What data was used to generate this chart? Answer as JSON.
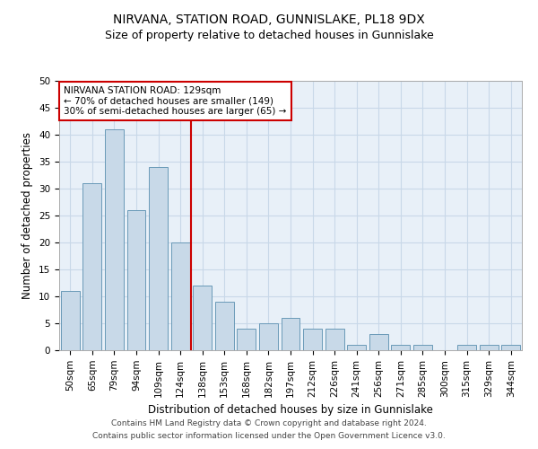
{
  "title": "NIRVANA, STATION ROAD, GUNNISLAKE, PL18 9DX",
  "subtitle": "Size of property relative to detached houses in Gunnislake",
  "xlabel": "Distribution of detached houses by size in Gunnislake",
  "ylabel": "Number of detached properties",
  "categories": [
    "50sqm",
    "65sqm",
    "79sqm",
    "94sqm",
    "109sqm",
    "124sqm",
    "138sqm",
    "153sqm",
    "168sqm",
    "182sqm",
    "197sqm",
    "212sqm",
    "226sqm",
    "241sqm",
    "256sqm",
    "271sqm",
    "285sqm",
    "300sqm",
    "315sqm",
    "329sqm",
    "344sqm"
  ],
  "values": [
    11,
    31,
    41,
    26,
    34,
    20,
    12,
    9,
    4,
    5,
    6,
    4,
    4,
    1,
    3,
    1,
    1,
    0,
    1,
    1,
    1
  ],
  "bar_color": "#c8d9e8",
  "bar_edge_color": "#6a9ab8",
  "red_line_x": 5.5,
  "red_line_label": "NIRVANA STATION ROAD: 129sqm",
  "annotation_line1": "← 70% of detached houses are smaller (149)",
  "annotation_line2": "30% of semi-detached houses are larger (65) →",
  "annotation_box_color": "#ffffff",
  "annotation_box_edge": "#cc0000",
  "red_line_color": "#cc0000",
  "grid_color": "#c8d8e8",
  "background_color": "#e8f0f8",
  "ylim": [
    0,
    50
  ],
  "yticks": [
    0,
    5,
    10,
    15,
    20,
    25,
    30,
    35,
    40,
    45,
    50
  ],
  "footer1": "Contains HM Land Registry data © Crown copyright and database right 2024.",
  "footer2": "Contains public sector information licensed under the Open Government Licence v3.0.",
  "title_fontsize": 10,
  "subtitle_fontsize": 9,
  "xlabel_fontsize": 8.5,
  "ylabel_fontsize": 8.5,
  "tick_fontsize": 7.5,
  "annotation_fontsize": 7.5,
  "footer_fontsize": 6.5
}
